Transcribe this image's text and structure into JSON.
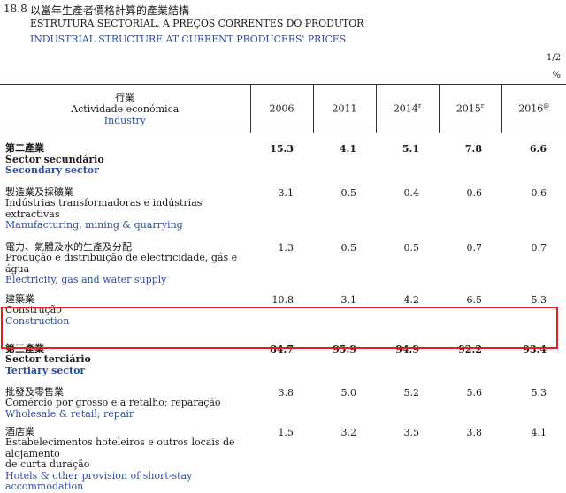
{
  "header": {
    "number": "18.8",
    "title_zh": "以當年生產者價格計算的產業結構",
    "title_pt": "ESTRUTURA SECTORIAL, A PREÇOS CORRENTES DO PRODUTOR",
    "title_en": "INDUSTRIAL STRUCTURE AT CURRENT PRODUCERS' PRICES",
    "page": "1/2",
    "unit": "%"
  },
  "columns": {
    "industry_zh": "行業",
    "industry_pt": "Actividade económica",
    "industry_en": "Industry",
    "years": [
      {
        "label": "2006",
        "sup": ""
      },
      {
        "label": "2011",
        "sup": ""
      },
      {
        "label": "2014",
        "sup": "r"
      },
      {
        "label": "2015",
        "sup": "r"
      },
      {
        "label": "2016",
        "sup": "@"
      }
    ]
  },
  "rows": [
    {
      "zh": "第二產業",
      "pt": "Sector secundário",
      "en": "Secondary sector",
      "values": [
        "15.3",
        "4.1",
        "5.1",
        "7.8",
        "6.6"
      ],
      "bold": true
    },
    {
      "zh": "製造業及採礦業",
      "pt": "Indústrias transformadoras e indústrias extractivas",
      "en": "Manufacturing, mining & quarrying",
      "values": [
        "3.1",
        "0.5",
        "0.4",
        "0.6",
        "0.6"
      ],
      "bold": false
    },
    {
      "zh": "電力、氣體及水的生產及分配",
      "pt": "Produção e distribuição de electricidade, gás e água",
      "en": "Electricity, gas and water supply",
      "values": [
        "1.3",
        "0.5",
        "0.5",
        "0.7",
        "0.7"
      ],
      "bold": false
    },
    {
      "zh": "建築業",
      "pt": "Construção",
      "en": "Construction",
      "values": [
        "10.8",
        "3.1",
        "4.2",
        "6.5",
        "5.3"
      ],
      "bold": false
    },
    {
      "zh": "第三產業",
      "pt": "Sector terciário",
      "en": "Tertiary sector",
      "values": [
        "84.7",
        "95.9",
        "94.9",
        "92.2",
        "93.4"
      ],
      "bold": true
    },
    {
      "zh": "批發及零售業",
      "pt": "Comércio por grosso e a retalho; reparação",
      "en": "Wholesale & retail; repair",
      "values": [
        "3.8",
        "5.0",
        "5.2",
        "5.6",
        "5.3"
      ],
      "bold": false
    },
    {
      "zh": "酒店業",
      "pt": "Estabelecimentos hoteleiros e outros locais de alojamento",
      "pt2": "de curta duração",
      "en": "Hotels & other provision of short-stay accommodation",
      "values": [
        "1.5",
        "3.2",
        "3.5",
        "3.8",
        "4.1"
      ],
      "bold": false
    }
  ]
}
